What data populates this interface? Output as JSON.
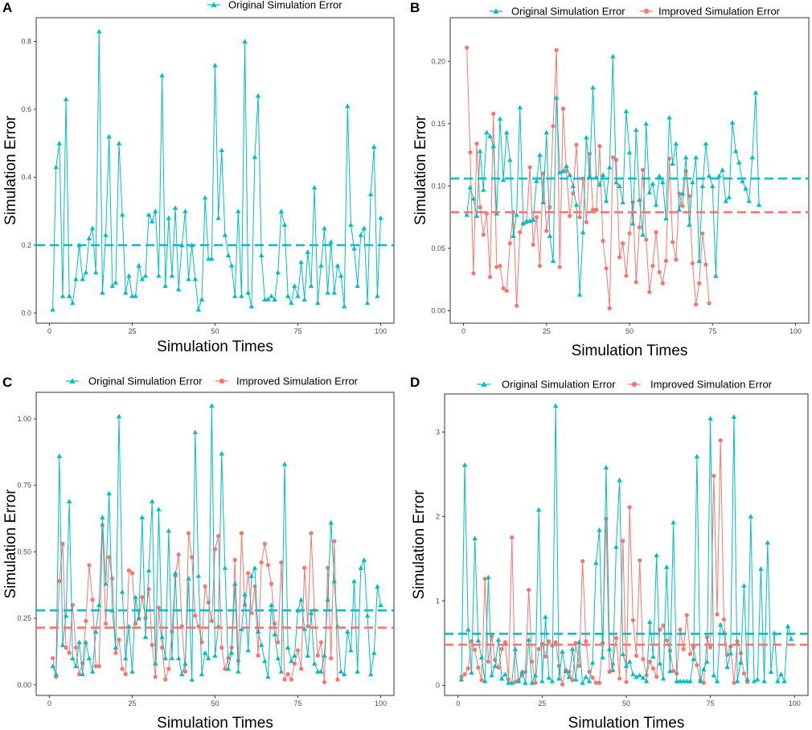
{
  "colors": {
    "original": "#00BFC4",
    "improved": "#F8766D"
  },
  "chart_data": [
    {
      "type": "line",
      "panel_label": "A",
      "title": "",
      "xlabel": "Simulation Times",
      "ylabel": "Simulation Error",
      "xlim": [
        -4,
        104
      ],
      "ylim": [
        -0.03,
        0.87
      ],
      "x_ticks": [
        0,
        25,
        50,
        75,
        100
      ],
      "y_ticks": [
        0.0,
        0.2,
        0.4,
        0.6,
        0.8
      ],
      "y_tick_labels": [
        "0.0",
        "0.2",
        "0.4",
        "0.6",
        "0.8"
      ],
      "legend_position": "top",
      "series": [
        {
          "name": "Original Simulation Error",
          "marker": "triangle",
          "mean": 0.2,
          "values": [
            0.01,
            0.43,
            0.5,
            0.05,
            0.63,
            0.05,
            0.03,
            0.1,
            0.2,
            0.1,
            0.12,
            0.22,
            0.25,
            0.12,
            0.83,
            0.06,
            0.23,
            0.52,
            0.08,
            0.09,
            0.5,
            0.29,
            0.06,
            0.11,
            0.05,
            0.05,
            0.14,
            0.1,
            0.11,
            0.29,
            0.27,
            0.3,
            0.11,
            0.7,
            0.08,
            0.28,
            0.11,
            0.31,
            0.07,
            0.2,
            0.3,
            0.1,
            0.2,
            0.1,
            0.01,
            0.04,
            0.34,
            0.16,
            0.16,
            0.73,
            0.28,
            0.48,
            0.23,
            0.17,
            0.14,
            0.05,
            0.3,
            0.05,
            0.8,
            0.06,
            0.02,
            0.46,
            0.64,
            0.17,
            0.04,
            0.04,
            0.05,
            0.04,
            0.12,
            0.3,
            0.26,
            0.05,
            0.03,
            0.08,
            0.05,
            0.15,
            0.04,
            0.18,
            0.08,
            0.37,
            0.03,
            0.14,
            0.25,
            0.06,
            0.21,
            0.06,
            0.14,
            0.11,
            0.02,
            0.61,
            0.26,
            0.19,
            0.08,
            0.23,
            0.25,
            0.03,
            0.35,
            0.49,
            0.05,
            0.28
          ]
        }
      ]
    },
    {
      "type": "line",
      "panel_label": "B",
      "title": "",
      "xlabel": "Simulation Times",
      "ylabel": "Simulation Error",
      "xlim": [
        -4,
        104
      ],
      "ylim": [
        -0.01,
        0.235
      ],
      "x_ticks": [
        0,
        25,
        50,
        75,
        100
      ],
      "y_ticks": [
        0.0,
        0.05,
        0.1,
        0.15,
        0.2
      ],
      "y_tick_labels": [
        "0.00",
        "0.05",
        "0.10",
        "0.15",
        "0.20"
      ],
      "legend_position": "top",
      "series": [
        {
          "name": "Original Simulation Error",
          "marker": "triangle",
          "mean": 0.106,
          "values": [
            0.077,
            0.099,
            0.09,
            0.076,
            0.128,
            0.097,
            0.143,
            0.14,
            0.132,
            0.078,
            0.154,
            0.105,
            0.143,
            0.121,
            0.06,
            0.077,
            0.163,
            0.07,
            0.072,
            0.072,
            0.073,
            0.104,
            0.125,
            0.087,
            0.143,
            0.06,
            0.04,
            0.171,
            0.111,
            0.112,
            0.116,
            0.109,
            0.1,
            0.085,
            0.013,
            0.063,
            0.139,
            0.108,
            0.179,
            0.107,
            0.101,
            0.109,
            0.088,
            0.115,
            0.204,
            0.103,
            0.1,
            0.087,
            0.16,
            0.127,
            0.07,
            0.145,
            0.089,
            0.061,
            0.15,
            0.095,
            0.102,
            0.085,
            0.108,
            0.103,
            0.074,
            0.155,
            0.118,
            0.134,
            0.081,
            0.094,
            0.123,
            0.069,
            0.103,
            0.123,
            0.04,
            0.1,
            0.134,
            0.108,
            0.1,
            0.028,
            0.108,
            0.113,
            0.088,
            0.091,
            0.151,
            0.128,
            0.119,
            0.104,
            0.098,
            0.088,
            0.123,
            0.175,
            0.085
          ]
        },
        {
          "name": "Improved Simulation Error",
          "marker": "circle",
          "mean": 0.079,
          "values": [
            0.211,
            0.127,
            0.03,
            0.134,
            0.083,
            0.061,
            0.078,
            0.027,
            0.158,
            0.035,
            0.036,
            0.018,
            0.016,
            0.054,
            0.079,
            0.004,
            0.063,
            0.07,
            0.071,
            0.115,
            0.053,
            0.075,
            0.036,
            0.11,
            0.064,
            0.083,
            0.148,
            0.209,
            0.035,
            0.162,
            0.112,
            0.076,
            0.094,
            0.133,
            0.075,
            0.106,
            0.071,
            0.126,
            0.081,
            0.081,
            0.132,
            0.056,
            0.034,
            0.002,
            0.123,
            0.121,
            0.043,
            0.054,
            0.028,
            0.062,
            0.087,
            0.023,
            0.067,
            0.113,
            0.057,
            0.015,
            0.036,
            0.063,
            0.031,
            0.022,
            0.04,
            0.122,
            0.055,
            0.041,
            0.094,
            0.084,
            0.112,
            0.092,
            0.038,
            0.005,
            0.022,
            0.062,
            0.037,
            0.006
          ]
        }
      ]
    },
    {
      "type": "line",
      "panel_label": "C",
      "title": "",
      "xlabel": "Simulation Times",
      "ylabel": "Simulation Error",
      "xlim": [
        -4,
        104
      ],
      "ylim": [
        -0.04,
        1.1
      ],
      "x_ticks": [
        0,
        25,
        50,
        75,
        100
      ],
      "y_ticks": [
        0.0,
        0.25,
        0.5,
        0.75,
        1.0
      ],
      "y_tick_labels": [
        "0.00",
        "0.25",
        "0.50",
        "0.75",
        "1.00"
      ],
      "legend_position": "top",
      "series": [
        {
          "name": "Original Simulation Error",
          "marker": "triangle",
          "mean": 0.28,
          "values": [
            0.07,
            0.04,
            0.86,
            0.15,
            0.26,
            0.69,
            0.1,
            0.07,
            0.16,
            0.04,
            0.16,
            0.1,
            0.05,
            0.2,
            0.3,
            0.63,
            0.38,
            0.72,
            0.28,
            0.14,
            1.01,
            0.35,
            0.1,
            0.22,
            0.05,
            0.33,
            0.25,
            0.63,
            0.18,
            0.43,
            0.69,
            0.08,
            0.66,
            0.18,
            0.1,
            0.58,
            0.1,
            0.42,
            0.1,
            0.04,
            0.08,
            0.4,
            0.02,
            0.95,
            0.41,
            0.04,
            0.12,
            0.1,
            1.05,
            0.11,
            0.22,
            0.87,
            0.44,
            0.06,
            0.12,
            0.38,
            0.05,
            0.21,
            0.34,
            0.13,
            0.41,
            0.44,
            0.2,
            0.15,
            0.09,
            0.03,
            0.3,
            0.19,
            0.1,
            0.05,
            0.83,
            0.14,
            0.09,
            0.11,
            0.28,
            0.32,
            0.21,
            0.11,
            0.27,
            0.08,
            0.05,
            0.05,
            0.11,
            0.32,
            0.61,
            0.39,
            0.22,
            0.05,
            0.04,
            0.2,
            0.13,
            0.39,
            0.05,
            0.44,
            0.47,
            0.26,
            0.04,
            0.12,
            0.37,
            0.3
          ]
        },
        {
          "name": "Improved Simulation Error",
          "marker": "circle",
          "mean": 0.215,
          "values": [
            0.1,
            0.03,
            0.39,
            0.53,
            0.14,
            0.12,
            0.3,
            0.14,
            0.04,
            0.08,
            0.24,
            0.45,
            0.32,
            0.07,
            0.07,
            0.6,
            0.23,
            0.48,
            0.4,
            0.12,
            0.17,
            0.06,
            0.04,
            0.43,
            0.42,
            0.23,
            0.25,
            0.33,
            0.25,
            0.36,
            0.15,
            0.03,
            0.29,
            0.14,
            0.02,
            0.06,
            0.2,
            0.41,
            0.49,
            0.22,
            0.05,
            0.57,
            0.48,
            0.26,
            0.22,
            0.16,
            0.37,
            0.31,
            0.24,
            0.51,
            0.56,
            0.14,
            0.06,
            0.1,
            0.14,
            0.47,
            0.09,
            0.57,
            0.3,
            0.42,
            0.27,
            0.37,
            0.11,
            0.46,
            0.53,
            0.45,
            0.38,
            0.23,
            0.16,
            0.46,
            0.02,
            0.04,
            0.02,
            0.08,
            0.13,
            0.06,
            0.44,
            0.22,
            0.57,
            0.28,
            0.11,
            0.16,
            0.01,
            0.44,
            0.1,
            0.54,
            0.02
          ]
        }
      ]
    },
    {
      "type": "line",
      "panel_label": "D",
      "title": "",
      "xlabel": "Simulation Times",
      "ylabel": "Simulation Error",
      "xlim": [
        -4,
        104
      ],
      "ylim": [
        -0.12,
        3.45
      ],
      "x_ticks": [
        0,
        25,
        50,
        75,
        100
      ],
      "y_ticks": [
        0,
        1,
        2,
        3
      ],
      "y_tick_labels": [
        "0",
        "1",
        "2",
        "3"
      ],
      "legend_position": "top",
      "series": [
        {
          "name": "Original Simulation Error",
          "marker": "triangle",
          "mean": 0.61,
          "values": [
            0.07,
            2.61,
            0.66,
            0.15,
            1.74,
            0.53,
            0.33,
            0.05,
            1.28,
            0.12,
            0.23,
            0.54,
            0.08,
            0.13,
            0.03,
            0.03,
            0.43,
            0.05,
            0.16,
            0.03,
            0.54,
            0.03,
            0.12,
            2.08,
            0.05,
            0.81,
            0.09,
            0.05,
            3.31,
            0.08,
            0.4,
            0.17,
            0.1,
            0.43,
            0.07,
            0.51,
            0.03,
            0.1,
            0.05,
            0.27,
            1.45,
            1.84,
            0.33,
            2.58,
            0.43,
            0.18,
            1.64,
            2.43,
            0.37,
            0.23,
            0.28,
            0.13,
            0.1,
            0.12,
            0.09,
            0.05,
            0.75,
            0.34,
            1.54,
            0.26,
            0.08,
            1.4,
            0.17,
            1.93,
            0.05,
            0.05,
            0.05,
            0.05,
            0.05,
            0.31,
            2.71,
            0.05,
            0.19,
            0.28,
            3.16,
            0.12,
            0.05,
            0.72,
            0.62,
            0.22,
            0.38,
            3.18,
            0.05,
            0.27,
            1.18,
            0.07,
            2.0,
            0.05,
            0.07,
            1.38,
            0.05,
            1.69,
            0.16,
            0.62,
            0.05,
            0.13,
            0.05,
            0.7,
            0.55
          ]
        },
        {
          "name": "Improved Simulation Error",
          "marker": "circle",
          "mean": 0.48,
          "values": [
            0.1,
            0.13,
            0.2,
            0.52,
            0.42,
            0.21,
            0.06,
            1.26,
            0.28,
            0.58,
            0.3,
            0.21,
            0.43,
            0.51,
            0.07,
            1.75,
            0.04,
            0.06,
            0.12,
            0.16,
            1.13,
            0.28,
            0.03,
            0.43,
            0.49,
            0.34,
            0.52,
            0.47,
            0.51,
            0.23,
            0.01,
            0.18,
            0.16,
            0.06,
            0.5,
            0.23,
            1.47,
            0.52,
            0.16,
            0.09,
            0.03,
            0.03,
            0.5,
            1.97,
            0.16,
            0.25,
            0.56,
            0.08,
            1.71,
            0.04,
            2.11,
            0.77,
            0.35,
            1.48,
            0.31,
            0.12,
            0.28,
            0.2,
            0.1,
            0.66,
            0.71,
            0.53,
            0.41,
            0.17,
            0.14,
            0.66,
            0.43,
            0.83,
            0.37,
            0.45,
            0.24,
            0.06,
            0.03,
            0.57,
            0.45,
            2.48,
            0.84,
            2.9,
            0.78,
            0.36,
            0.46,
            0.03,
            0.52,
            0.38,
            0.14,
            0.04
          ]
        }
      ]
    }
  ]
}
